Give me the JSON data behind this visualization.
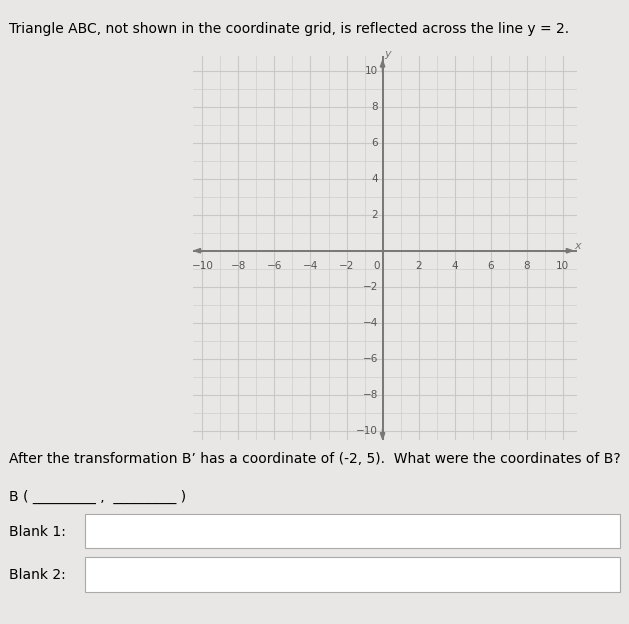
{
  "title": "Triangle ABC, not shown in the coordinate grid, is reflected across the line y = 2.",
  "title_fontsize": 10,
  "grid_color_minor": "#c8c8c8",
  "grid_color_major": "#b0b0b0",
  "bg_color": "#dcdcdc",
  "axis_color": "#777777",
  "fig_bg": "#e8e7e5",
  "xmin": -10,
  "xmax": 10,
  "ymin": -10,
  "ymax": 10,
  "xticks": [
    -10,
    -8,
    -6,
    -4,
    -2,
    0,
    2,
    4,
    6,
    8,
    10
  ],
  "yticks": [
    -10,
    -8,
    -6,
    -4,
    -2,
    0,
    2,
    4,
    6,
    8,
    10
  ],
  "xlabel": "x",
  "ylabel": "y",
  "question_text": "After the transformation B’ has a coordinate of (-2, 5).  What were the coordinates of B?",
  "question_fontsize": 10,
  "blank1_label": "Blank 1:",
  "blank2_label": "Blank 2:",
  "tick_fontsize": 7.5,
  "tick_color": "#555555"
}
